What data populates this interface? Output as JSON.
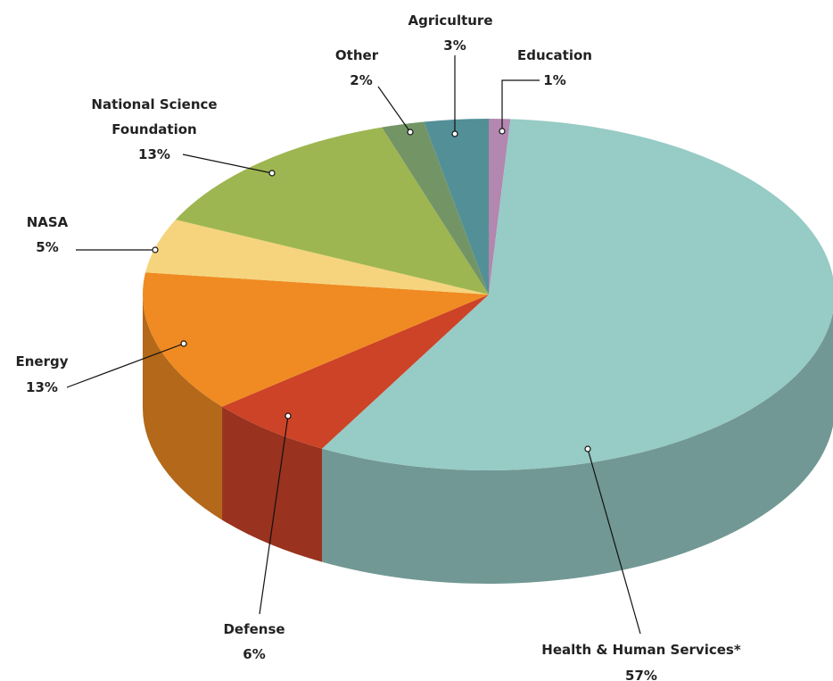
{
  "chart_data": {
    "type": "pie3d",
    "categories": [
      "Education",
      "Health & Human Services*",
      "Defense",
      "Energy",
      "NASA",
      "National Science Foundation",
      "Other",
      "Agriculture"
    ],
    "values": [
      1,
      57,
      6,
      13,
      5,
      13,
      2,
      3
    ],
    "value_labels": [
      "1%",
      "57%",
      "6%",
      "13%",
      "5%",
      "13%",
      "2%",
      "3%"
    ],
    "colors": [
      "#b287b0",
      "#97cbc5",
      "#cc4328",
      "#ef8b22",
      "#f5d47d",
      "#9eb651",
      "#739566",
      "#528f97"
    ]
  }
}
